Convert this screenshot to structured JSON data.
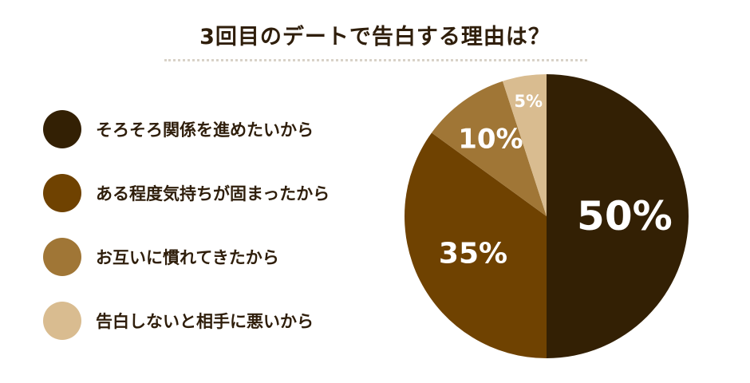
{
  "chart_data": {
    "type": "pie",
    "title": "3回目のデートで告白する理由は？",
    "categories": [
      "そろそろ関係を進めたいから",
      "ある程度気持ちが固まったから",
      "お互いに慣れてきたから",
      "告白しないと相手に悪いから"
    ],
    "values": [
      50,
      35,
      10,
      5
    ],
    "labels": [
      "50%",
      "35%",
      "10%",
      "5%"
    ],
    "colors": [
      "#332004",
      "#6f4201",
      "#a07636",
      "#d9bc90"
    ],
    "legend": "left"
  }
}
